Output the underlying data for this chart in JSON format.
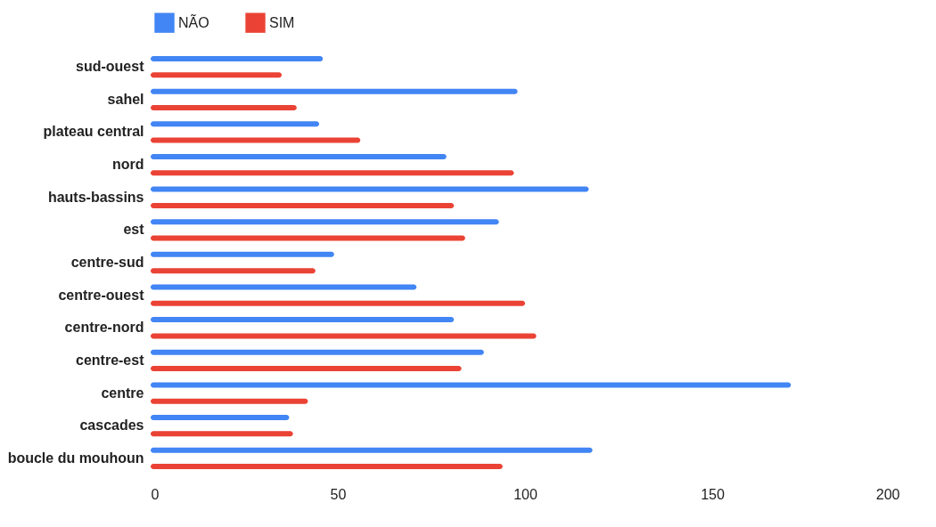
{
  "chart_data": {
    "type": "bar",
    "orientation": "horizontal",
    "categories": [
      "sud-ouest",
      "sahel",
      "plateau central",
      "nord",
      "hauts-bassins",
      "est",
      "centre-sud",
      "centre-ouest",
      "centre-nord",
      "centre-est",
      "centre",
      "cascades",
      "boucle du mouhoun"
    ],
    "series": [
      {
        "name": "NÃO",
        "color": "#4285f4",
        "values": [
          46,
          98,
          45,
          79,
          117,
          93,
          49,
          71,
          81,
          89,
          171,
          37,
          118
        ]
      },
      {
        "name": "SIM",
        "color": "#ea4335",
        "values": [
          35,
          39,
          56,
          97,
          81,
          84,
          44,
          100,
          103,
          83,
          42,
          38,
          94
        ]
      }
    ],
    "xlim": [
      0,
      200
    ],
    "xticks": [
      0,
      50,
      100,
      150,
      200
    ],
    "grid": false,
    "legend": "top"
  }
}
